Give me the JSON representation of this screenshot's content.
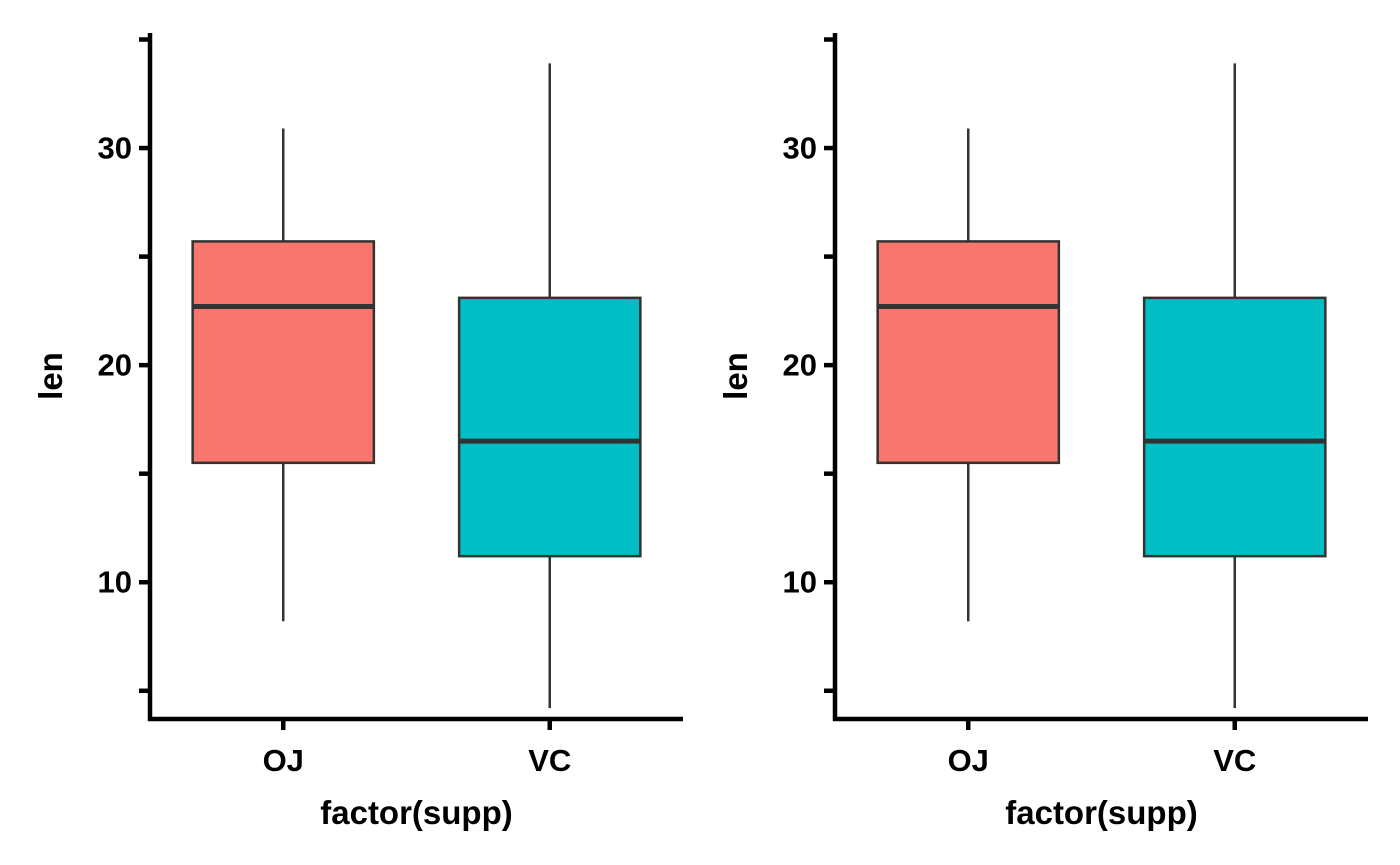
{
  "chart_data": [
    {
      "type": "boxplot",
      "xlabel": "factor(supp)",
      "ylabel": "len",
      "ylim": [
        3.7,
        35.3
      ],
      "yticks": [
        10,
        20,
        30
      ],
      "categories": [
        "OJ",
        "VC"
      ],
      "boxes": [
        {
          "category": "OJ",
          "min": 8.2,
          "q1": 15.5,
          "median": 22.7,
          "q3": 25.7,
          "max": 30.9,
          "fill": "#F8766D"
        },
        {
          "category": "VC",
          "min": 4.2,
          "q1": 11.2,
          "median": 16.5,
          "q3": 23.1,
          "max": 33.9,
          "fill": "#00BFC4"
        }
      ],
      "grid": false,
      "legend": "none"
    },
    {
      "type": "boxplot",
      "xlabel": "factor(supp)",
      "ylabel": "len",
      "ylim": [
        3.7,
        35.3
      ],
      "yticks": [
        10,
        20,
        30
      ],
      "categories": [
        "OJ",
        "VC"
      ],
      "boxes": [
        {
          "category": "OJ",
          "min": 8.2,
          "q1": 15.5,
          "median": 22.7,
          "q3": 25.7,
          "max": 30.9,
          "fill": "#F8766D"
        },
        {
          "category": "VC",
          "min": 4.2,
          "q1": 11.2,
          "median": 16.5,
          "q3": 23.1,
          "max": 33.9,
          "fill": "#00BFC4"
        }
      ],
      "grid": false,
      "legend": "none"
    }
  ]
}
